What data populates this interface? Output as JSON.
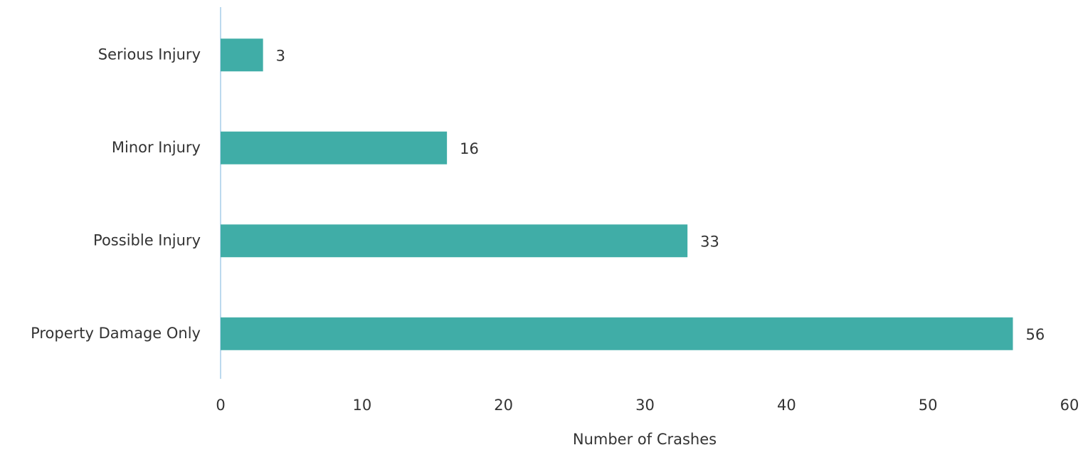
{
  "chart_data": {
    "type": "bar",
    "orientation": "horizontal",
    "x_label": "Number of Crashes",
    "categories": [
      "Serious Injury",
      "Minor Injury",
      "Possible Injury",
      "Property Damage Only"
    ],
    "values": [
      3,
      16,
      33,
      56
    ],
    "color": "#40ada7",
    "xlim": [
      0,
      60
    ],
    "xticks": [
      0,
      10,
      20,
      30,
      40,
      50,
      60
    ],
    "grid": false
  }
}
